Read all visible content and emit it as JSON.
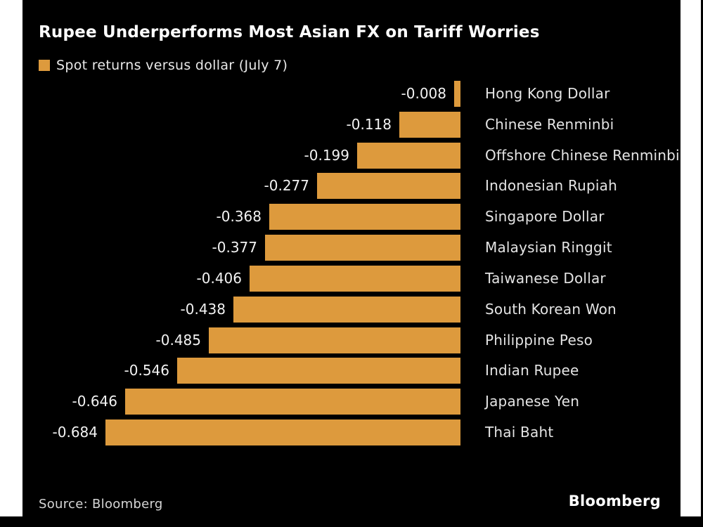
{
  "chart": {
    "title": "Rupee Underperforms Most Asian FX on Tariff Worries",
    "legend_label": "Spot returns versus dollar (July 7)",
    "source": "Source: Bloomberg",
    "brand": "Bloomberg"
  },
  "colors": {
    "bar": "#DD9A3D",
    "background": "#000000",
    "page_background": "#FFFFFF",
    "title_text": "#FFFFFF",
    "label_text": "#E4E4E4"
  },
  "chart_data": {
    "type": "bar",
    "orientation": "horizontal",
    "title": "Rupee Underperforms Most Asian FX on Tariff Worries",
    "legend_entries": [
      "Spot returns versus dollar (July 7)"
    ],
    "legend_position": "top-left",
    "grid": false,
    "xlim": [
      -0.7,
      0
    ],
    "bars_right_aligned_at_zero": true,
    "value_label_position": "left-of-bar",
    "category_label_position": "right-of-bar",
    "categories": [
      "Hong Kong Dollar",
      "Chinese Renminbi",
      "Offshore Chinese Renminbi",
      "Indonesian Rupiah",
      "Singapore Dollar",
      "Malaysian Ringgit",
      "Taiwanese Dollar",
      "South Korean Won",
      "Philippine Peso",
      "Indian Rupee",
      "Japanese Yen",
      "Thai Baht"
    ],
    "values": [
      -0.008,
      -0.118,
      -0.199,
      -0.277,
      -0.368,
      -0.377,
      -0.406,
      -0.438,
      -0.485,
      -0.546,
      -0.646,
      -0.684
    ],
    "value_labels": [
      "-0.008",
      "-0.118",
      "-0.199",
      "-0.277",
      "-0.368",
      "-0.377",
      "-0.406",
      "-0.438",
      "-0.485",
      "-0.546",
      "-0.646",
      "-0.684"
    ],
    "source": "Source: Bloomberg",
    "brand": "Bloomberg"
  }
}
